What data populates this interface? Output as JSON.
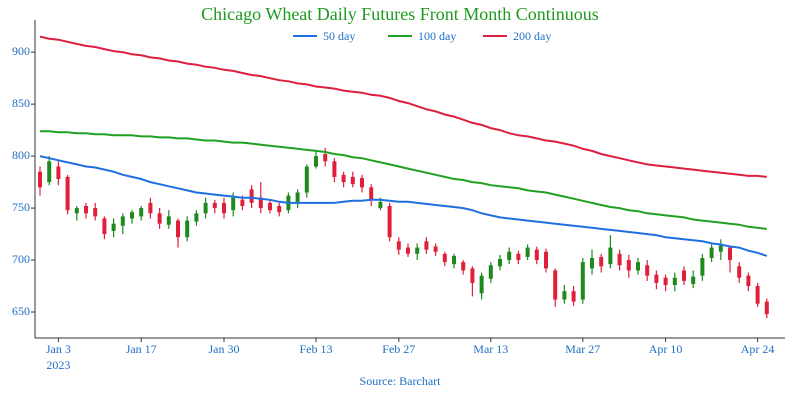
{
  "chart_data": {
    "type": "candlestick",
    "title": "Chicago Wheat Daily Futures Front Month Continuous",
    "source": "Source: Barchart",
    "year_label": "2023",
    "categories": [
      null,
      null,
      "Jan 3",
      null,
      null,
      null,
      null,
      null,
      null,
      null,
      null,
      "Jan 17",
      null,
      null,
      null,
      null,
      null,
      null,
      null,
      null,
      "Jan 30",
      null,
      null,
      null,
      null,
      null,
      null,
      null,
      null,
      null,
      "Feb 13",
      null,
      null,
      null,
      null,
      null,
      null,
      null,
      null,
      "Feb 27",
      null,
      null,
      null,
      null,
      null,
      null,
      null,
      null,
      null,
      "Mar 13",
      null,
      null,
      null,
      null,
      null,
      null,
      null,
      null,
      null,
      "Mar 27",
      null,
      null,
      null,
      null,
      null,
      null,
      null,
      null,
      "Apr 10",
      null,
      null,
      null,
      null,
      null,
      null,
      null,
      null,
      null,
      "Apr 24",
      null
    ],
    "open": [
      785,
      775,
      790,
      780,
      745,
      752,
      750,
      740,
      728,
      733,
      740,
      742,
      755,
      745,
      734,
      738,
      722,
      737,
      745,
      755,
      755,
      748,
      758,
      768,
      760,
      755,
      752,
      748,
      756,
      765,
      790,
      802,
      795,
      782,
      780,
      779,
      770,
      750,
      752,
      718,
      712,
      706,
      718,
      713,
      706,
      696,
      698,
      692,
      668,
      682,
      694,
      700,
      706,
      703,
      710,
      708,
      690,
      662,
      670,
      662,
      692,
      703,
      696,
      706,
      700,
      690,
      695,
      686,
      683,
      676,
      690,
      677,
      685,
      702,
      708,
      712,
      694,
      685,
      675,
      660
    ],
    "high": [
      790,
      800,
      795,
      782,
      752,
      755,
      755,
      742,
      740,
      745,
      748,
      752,
      760,
      750,
      748,
      740,
      742,
      748,
      760,
      758,
      760,
      765,
      762,
      772,
      775,
      758,
      755,
      765,
      768,
      792,
      806,
      808,
      798,
      785,
      785,
      782,
      773,
      760,
      755,
      722,
      716,
      716,
      722,
      716,
      708,
      706,
      700,
      694,
      688,
      698,
      705,
      712,
      709,
      715,
      713,
      711,
      692,
      676,
      675,
      702,
      710,
      706,
      724,
      710,
      705,
      702,
      700,
      690,
      686,
      688,
      694,
      690,
      706,
      716,
      720,
      714,
      698,
      688,
      678,
      663
    ],
    "low": [
      762,
      772,
      772,
      744,
      738,
      740,
      738,
      720,
      722,
      725,
      735,
      738,
      740,
      730,
      730,
      712,
      718,
      733,
      740,
      745,
      740,
      742,
      748,
      750,
      745,
      745,
      742,
      745,
      750,
      760,
      788,
      790,
      775,
      770,
      770,
      765,
      752,
      748,
      718,
      705,
      703,
      700,
      706,
      704,
      694,
      692,
      686,
      665,
      662,
      678,
      690,
      696,
      696,
      700,
      696,
      688,
      655,
      658,
      656,
      658,
      686,
      688,
      692,
      690,
      683,
      686,
      680,
      672,
      670,
      670,
      676,
      673,
      680,
      698,
      700,
      688,
      678,
      670,
      655,
      644
    ],
    "close": [
      770,
      795,
      778,
      748,
      750,
      745,
      742,
      725,
      735,
      742,
      746,
      750,
      745,
      735,
      742,
      722,
      738,
      745,
      755,
      750,
      745,
      760,
      752,
      755,
      750,
      748,
      746,
      762,
      765,
      790,
      800,
      795,
      780,
      775,
      773,
      770,
      758,
      756,
      722,
      710,
      706,
      712,
      710,
      708,
      698,
      704,
      690,
      678,
      685,
      695,
      701,
      708,
      700,
      712,
      700,
      692,
      662,
      670,
      660,
      698,
      702,
      694,
      712,
      695,
      690,
      698,
      685,
      678,
      676,
      683,
      680,
      684,
      702,
      712,
      714,
      700,
      683,
      675,
      658,
      648
    ],
    "up_color": "#1e8a1e",
    "down_color": "#e0203a",
    "series": [
      {
        "name": "50 day",
        "color": "#1f6fe0",
        "values": [
          800,
          798,
          796,
          794,
          792,
          790,
          789,
          787,
          785,
          782,
          780,
          778,
          775,
          773,
          771,
          769,
          767,
          765,
          764,
          763,
          762,
          761,
          760,
          760,
          759,
          758,
          756,
          755,
          755,
          755,
          755,
          755,
          755,
          756,
          757,
          757,
          758,
          758,
          757,
          756,
          756,
          755,
          754,
          753,
          752,
          751,
          750,
          748,
          745,
          743,
          741,
          740,
          739,
          738,
          737,
          736,
          735,
          734,
          733,
          732,
          731,
          730,
          729,
          728,
          727,
          726,
          725,
          724,
          722,
          721,
          720,
          719,
          718,
          716,
          715,
          713,
          712,
          709,
          707,
          704
        ]
      },
      {
        "name": "100 day",
        "color": "#22a022",
        "values": [
          824,
          824,
          823,
          823,
          822,
          822,
          821,
          821,
          820,
          820,
          820,
          819,
          819,
          818,
          818,
          817,
          817,
          816,
          815,
          815,
          814,
          813,
          813,
          812,
          811,
          810,
          809,
          808,
          807,
          806,
          805,
          804,
          802,
          801,
          799,
          798,
          796,
          794,
          792,
          790,
          788,
          786,
          784,
          782,
          780,
          778,
          777,
          775,
          774,
          772,
          771,
          770,
          769,
          767,
          766,
          765,
          763,
          761,
          759,
          757,
          755,
          753,
          751,
          750,
          748,
          747,
          745,
          744,
          743,
          742,
          741,
          739,
          738,
          737,
          736,
          735,
          734,
          732,
          731,
          730
        ]
      },
      {
        "name": "200 day",
        "color": "#dc2040",
        "values": [
          915,
          913,
          912,
          910,
          908,
          906,
          905,
          903,
          901,
          900,
          898,
          897,
          895,
          894,
          892,
          891,
          889,
          888,
          886,
          885,
          883,
          882,
          880,
          878,
          877,
          875,
          873,
          872,
          870,
          869,
          867,
          866,
          865,
          863,
          862,
          861,
          859,
          858,
          856,
          853,
          851,
          848,
          845,
          843,
          840,
          838,
          835,
          832,
          830,
          827,
          825,
          822,
          820,
          819,
          817,
          815,
          814,
          812,
          810,
          807,
          805,
          802,
          800,
          798,
          796,
          794,
          792,
          791,
          790,
          789,
          788,
          787,
          786,
          785,
          784,
          783,
          782,
          781,
          781,
          780
        ]
      }
    ],
    "ylim": [
      625,
      930
    ],
    "yticks": [
      650,
      700,
      750,
      800,
      850,
      900
    ]
  }
}
